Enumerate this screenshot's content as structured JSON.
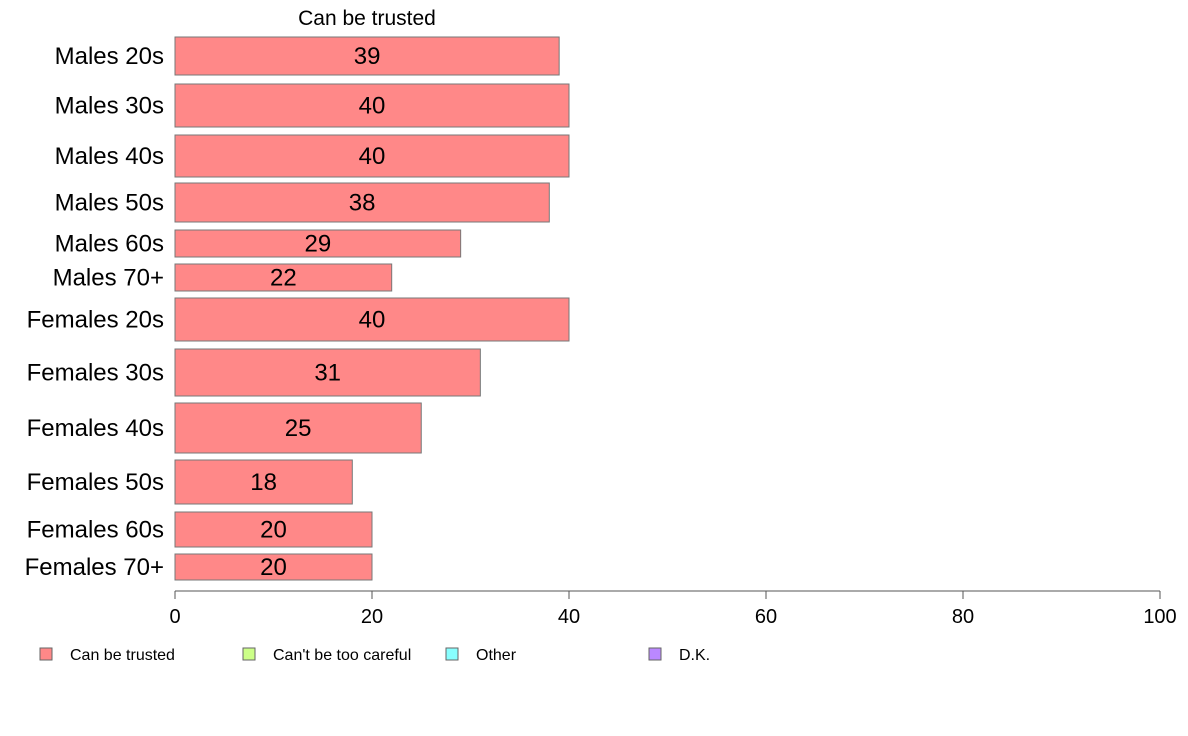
{
  "chart_data": {
    "type": "bar",
    "orientation": "horizontal",
    "title": "Can be trusted",
    "xlabel": "",
    "ylabel": "",
    "xlim": [
      0,
      100
    ],
    "xticks": [
      0,
      20,
      40,
      60,
      80,
      100
    ],
    "xtick_labels": [
      "0",
      "20",
      "40",
      "60",
      "80",
      "100"
    ],
    "grid": false,
    "legend_position": "bottom",
    "categories": [
      "Males 20s",
      "Males 30s",
      "Males 40s",
      "Males 50s",
      "Males 60s",
      "Males 70+",
      "Females 20s",
      "Females 30s",
      "Females 40s",
      "Females 50s",
      "Females 60s",
      "Females 70+"
    ],
    "values": [
      39,
      40,
      40,
      38,
      29,
      22,
      40,
      31,
      25,
      18,
      20,
      20
    ],
    "value_labels": [
      "39",
      "40",
      "40",
      "38",
      "29",
      "22",
      "40",
      "31",
      "25",
      "18",
      "20",
      "20"
    ],
    "bar_color": "#ff8888",
    "legend": [
      {
        "label": "Can be trusted",
        "color": "#ff8888"
      },
      {
        "label": "Can't be too careful",
        "color": "#ccff88"
      },
      {
        "label": "Other",
        "color": "#88ffff"
      },
      {
        "label": "D.K.",
        "color": "#bb88ff"
      }
    ]
  }
}
